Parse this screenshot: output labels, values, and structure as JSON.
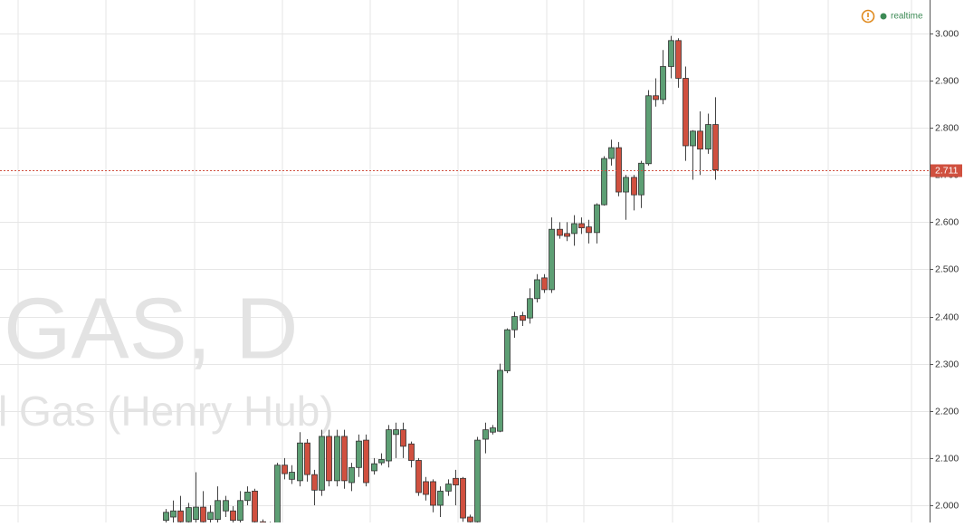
{
  "chart_data": {
    "type": "candlestick",
    "watermark_symbol": "GAS, D",
    "watermark_name": "l Gas (Henry Hub)",
    "status_label": "realtime",
    "categories": [
      null,
      null,
      null,
      null,
      null,
      null,
      null,
      null,
      null,
      null,
      null,
      null,
      null,
      null,
      null,
      null,
      null,
      null,
      null,
      null,
      null,
      null,
      null,
      null,
      null,
      null,
      null,
      null,
      null,
      null,
      null,
      null,
      null,
      null,
      null,
      null,
      null,
      null,
      null,
      null,
      null,
      null,
      null,
      null,
      null,
      null,
      null,
      null,
      null,
      null,
      null,
      null,
      null,
      null,
      null,
      null,
      null,
      null,
      null,
      null,
      null,
      null,
      null,
      null,
      null,
      null,
      null,
      null,
      null,
      null,
      null,
      null,
      null,
      null,
      null
    ],
    "open": [
      1.968,
      1.975,
      1.988,
      1.965,
      1.97,
      1.996,
      1.97,
      1.97,
      1.988,
      1.988,
      1.968,
      2.01,
      2.03,
      1.965,
      1.94,
      1.955,
      2.085,
      2.055,
      2.052,
      2.132,
      2.065,
      2.032,
      2.146,
      2.052,
      2.146,
      2.048,
      2.08,
      2.138,
      2.073,
      2.09,
      2.094,
      2.15,
      2.16,
      2.13,
      2.095,
      2.05,
      2.05,
      2.0,
      2.03,
      2.057,
      2.057,
      1.975,
      1.965,
      2.14,
      2.155,
      2.157,
      2.285,
      2.372,
      2.402,
      2.397,
      2.438,
      2.482,
      2.457,
      2.585,
      2.576,
      2.576,
      2.597,
      2.59,
      2.578,
      2.637,
      2.735,
      2.758,
      2.664,
      2.695,
      2.658,
      2.724,
      2.868,
      2.86,
      2.93,
      2.985,
      2.905,
      2.762,
      2.793,
      2.755,
      2.807
    ],
    "high": [
      1.992,
      2.01,
      2.02,
      2.005,
      2.07,
      2.03,
      2.0,
      2.04,
      2.02,
      1.998,
      2.03,
      2.04,
      2.035,
      1.97,
      1.965,
      2.09,
      2.1,
      2.085,
      2.155,
      2.14,
      2.075,
      2.16,
      2.16,
      2.16,
      2.16,
      2.09,
      2.15,
      2.15,
      2.1,
      2.11,
      2.17,
      2.175,
      2.175,
      2.135,
      2.1,
      2.06,
      2.055,
      2.04,
      2.055,
      2.075,
      2.06,
      1.98,
      2.145,
      2.175,
      2.17,
      2.3,
      2.375,
      2.41,
      2.41,
      2.46,
      2.49,
      2.49,
      2.61,
      2.6,
      2.6,
      2.615,
      2.61,
      2.605,
      2.64,
      2.74,
      2.775,
      2.77,
      2.7,
      2.7,
      2.73,
      2.88,
      2.905,
      2.965,
      2.995,
      2.99,
      2.93,
      2.795,
      2.835,
      2.83,
      2.865
    ],
    "low": [
      1.955,
      1.96,
      1.955,
      1.955,
      1.955,
      1.955,
      1.955,
      1.955,
      1.975,
      1.955,
      1.955,
      2.0,
      1.955,
      1.93,
      1.93,
      1.95,
      2.055,
      2.045,
      2.04,
      2.05,
      2.0,
      2.02,
      2.04,
      2.04,
      2.035,
      2.03,
      2.06,
      2.04,
      2.065,
      2.085,
      2.08,
      2.1,
      2.1,
      2.08,
      2.02,
      2.01,
      1.985,
      1.975,
      2.02,
      2.0,
      1.965,
      1.955,
      1.955,
      2.11,
      2.15,
      2.155,
      2.28,
      2.355,
      2.38,
      2.385,
      2.43,
      2.45,
      2.45,
      2.565,
      2.56,
      2.55,
      2.575,
      2.555,
      2.555,
      2.635,
      2.72,
      2.655,
      2.605,
      2.625,
      2.63,
      2.72,
      2.845,
      2.85,
      2.905,
      2.885,
      2.73,
      2.69,
      2.7,
      2.745,
      2.69
    ],
    "close": [
      1.985,
      1.988,
      1.965,
      1.995,
      1.996,
      1.965,
      1.985,
      2.01,
      2.01,
      1.968,
      2.01,
      2.028,
      1.965,
      1.94,
      1.96,
      2.085,
      2.067,
      2.07,
      2.132,
      2.065,
      2.032,
      2.146,
      2.052,
      2.146,
      2.052,
      2.08,
      2.136,
      2.048,
      2.088,
      2.097,
      2.16,
      2.16,
      2.125,
      2.095,
      2.027,
      2.023,
      2.0,
      2.03,
      2.045,
      2.043,
      1.973,
      1.965,
      2.138,
      2.16,
      2.164,
      2.286,
      2.372,
      2.4,
      2.392,
      2.438,
      2.478,
      2.457,
      2.585,
      2.572,
      2.57,
      2.597,
      2.588,
      2.578,
      2.637,
      2.735,
      2.758,
      2.664,
      2.695,
      2.658,
      2.725,
      2.868,
      2.86,
      2.93,
      2.985,
      2.905,
      2.762,
      2.793,
      2.755,
      2.807,
      2.711
    ],
    "up_color": "#5d9f74",
    "down_color": "#d0503f",
    "ylim": [
      1.9635,
      3.071
    ],
    "yticks": [
      {
        "value": 2.0,
        "label": "2.000"
      },
      {
        "value": 2.1,
        "label": "2.100"
      },
      {
        "value": 2.2,
        "label": "2.200"
      },
      {
        "value": 2.3,
        "label": "2.300"
      },
      {
        "value": 2.4,
        "label": "2.400"
      },
      {
        "value": 2.5,
        "label": "2.500"
      },
      {
        "value": 2.6,
        "label": "2.600"
      },
      {
        "value": 2.7,
        "label": "2.700"
      },
      {
        "value": 2.8,
        "label": "2.800"
      },
      {
        "value": 2.9,
        "label": "2.900"
      },
      {
        "value": 3.0,
        "label": "3.000"
      }
    ],
    "grid": true,
    "last_price": {
      "value": 2.711,
      "label": "2.711",
      "color": "#d0503f"
    }
  }
}
